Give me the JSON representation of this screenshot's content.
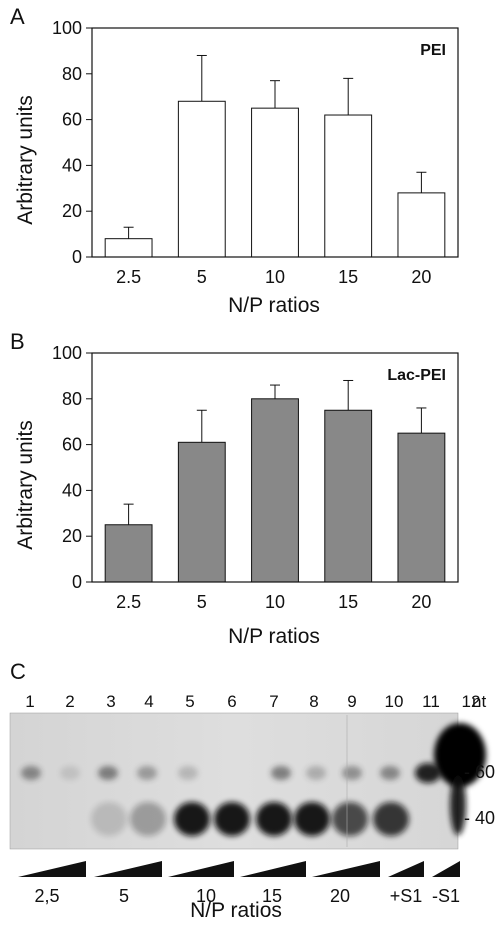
{
  "chart_data": [
    {
      "panel": "A",
      "type": "bar",
      "series_label": "PEI",
      "bar_color": "#ffffff",
      "categories": [
        "2.5",
        "5",
        "10",
        "15",
        "20"
      ],
      "values": [
        8,
        68,
        65,
        62,
        28
      ],
      "errors": [
        5,
        20,
        12,
        16,
        9
      ],
      "xlabel": "N/P ratios",
      "ylabel": "Arbitrary units",
      "ylim": [
        0,
        100
      ],
      "yticks": [
        "0",
        "20",
        "40",
        "60",
        "80",
        "100"
      ],
      "grid": false
    },
    {
      "panel": "B",
      "type": "bar",
      "series_label": "Lac-PEI",
      "bar_color": "#888888",
      "categories": [
        "2.5",
        "5",
        "10",
        "15",
        "20"
      ],
      "values": [
        25,
        61,
        80,
        75,
        65
      ],
      "errors": [
        9,
        14,
        6,
        13,
        11
      ],
      "xlabel": "N/P ratios",
      "ylabel": "Arbitrary units",
      "ylim": [
        0,
        100
      ],
      "yticks": [
        "0",
        "20",
        "40",
        "60",
        "80",
        "100"
      ],
      "grid": false
    }
  ],
  "gel": {
    "panel": "C",
    "lanes": [
      "1",
      "2",
      "3",
      "4",
      "5",
      "6",
      "7",
      "8",
      "9",
      "10",
      "11",
      "12"
    ],
    "nt_label": "nt",
    "markers": [
      "- 60",
      "- 40"
    ],
    "groups": [
      "2,5",
      "5",
      "10",
      "15",
      "20",
      "+S1",
      "-S1"
    ],
    "xlabel": "N/P ratios"
  }
}
